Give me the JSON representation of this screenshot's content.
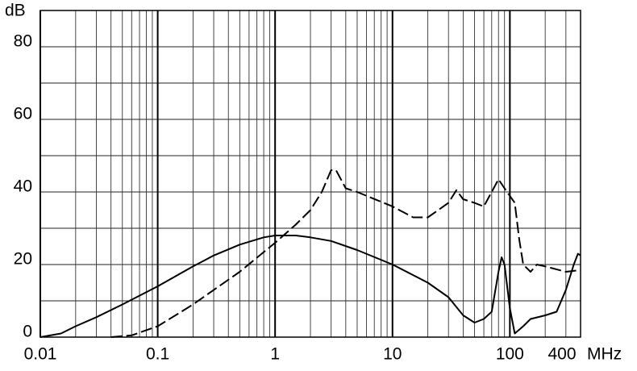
{
  "chart_data": {
    "type": "line",
    "x_unit": "MHz",
    "y_unit": "dB",
    "xscale": "log",
    "xlim": [
      0.01,
      400
    ],
    "ylim": [
      0,
      90
    ],
    "xticks": [
      0.01,
      0.1,
      1,
      10,
      100,
      400
    ],
    "xgrid_major": [
      0.01,
      0.1,
      1,
      10,
      100
    ],
    "xgrid_minor": [
      0.02,
      0.03,
      0.04,
      0.05,
      0.06,
      0.07,
      0.08,
      0.09,
      0.2,
      0.3,
      0.4,
      0.5,
      0.6,
      0.7,
      0.8,
      0.9,
      2,
      3,
      4,
      5,
      6,
      7,
      8,
      9,
      20,
      30,
      40,
      50,
      60,
      70,
      80,
      90,
      200,
      300,
      400
    ],
    "yticks": [
      0,
      20,
      40,
      60,
      80
    ],
    "ygrid_minor": [
      10,
      30,
      50,
      70,
      90
    ],
    "grid": true,
    "series": [
      {
        "color": "#000000",
        "dash": false,
        "x": [
          0.01,
          0.015,
          0.02,
          0.03,
          0.05,
          0.1,
          0.2,
          0.3,
          0.5,
          0.8,
          1,
          1.5,
          2,
          3,
          5,
          10,
          20,
          30,
          40,
          50,
          60,
          70,
          80,
          85,
          90,
          100,
          110,
          130,
          150,
          200,
          250,
          300,
          350,
          380,
          400
        ],
        "values": [
          0,
          1,
          3,
          5.5,
          9,
          14,
          19.5,
          22.5,
          25.5,
          27.5,
          28,
          28,
          27.5,
          26.5,
          24,
          20,
          15,
          11,
          6,
          4,
          5,
          7,
          18,
          22,
          20,
          8,
          1,
          3,
          5,
          6,
          7,
          13,
          20,
          23,
          22.5
        ]
      },
      {
        "color": "#000000",
        "dash": true,
        "x": [
          0.04,
          0.06,
          0.1,
          0.2,
          0.5,
          1,
          1.5,
          2,
          2.5,
          3,
          3.3,
          4,
          5,
          10,
          15,
          20,
          30,
          35,
          40,
          50,
          60,
          70,
          80,
          90,
          110,
          120,
          130,
          150,
          170,
          200,
          300,
          400
        ],
        "values": [
          0,
          0.5,
          3,
          9,
          18,
          26,
          31,
          35,
          40,
          46,
          46,
          41,
          40,
          36,
          33,
          33,
          37,
          40.5,
          38,
          37,
          36,
          40,
          43.5,
          41,
          37,
          27,
          20,
          18,
          20,
          19.5,
          18,
          18.5
        ]
      }
    ]
  }
}
